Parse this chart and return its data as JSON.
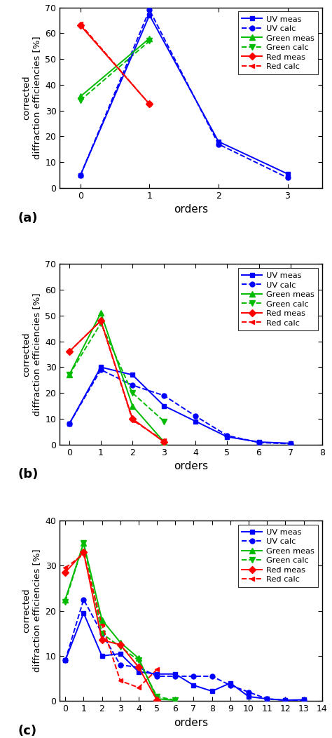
{
  "panel_a": {
    "uv_meas": {
      "x": [
        0,
        1,
        2,
        3
      ],
      "y": [
        5,
        67,
        18,
        5.5
      ]
    },
    "uv_calc": {
      "x": [
        0,
        1,
        2,
        3
      ],
      "y": [
        5,
        69,
        17,
        4
      ]
    },
    "green_meas": {
      "x": [
        0,
        1
      ],
      "y": [
        35.5,
        58
      ]
    },
    "green_calc": {
      "x": [
        0,
        1
      ],
      "y": [
        34,
        57
      ]
    },
    "red_meas": {
      "x": [
        0,
        1
      ],
      "y": [
        63,
        32.5
      ]
    },
    "red_calc": {
      "x": [
        0,
        1
      ],
      "y": [
        63.5,
        32.5
      ]
    },
    "ylim": [
      0,
      70
    ],
    "yticks": [
      0,
      10,
      20,
      30,
      40,
      50,
      60,
      70
    ],
    "xlim": [
      -0.3,
      3.5
    ],
    "xticks": [
      0,
      1,
      2,
      3
    ],
    "label": "(a)"
  },
  "panel_b": {
    "uv_meas": {
      "x": [
        0,
        1,
        2,
        3,
        4,
        5,
        6,
        7
      ],
      "y": [
        8,
        30,
        27,
        15,
        9,
        3,
        1,
        0.5
      ]
    },
    "uv_calc": {
      "x": [
        0,
        1,
        2,
        3,
        4,
        5,
        6,
        7
      ],
      "y": [
        8,
        29,
        23,
        19,
        11,
        3.5,
        0.8,
        0.3
      ]
    },
    "green_meas": {
      "x": [
        0,
        1,
        2,
        3
      ],
      "y": [
        27,
        51,
        15,
        1
      ]
    },
    "green_calc": {
      "x": [
        0,
        1,
        2,
        3
      ],
      "y": [
        27,
        47,
        20,
        9
      ]
    },
    "red_meas": {
      "x": [
        0,
        1,
        2,
        3
      ],
      "y": [
        36,
        48,
        10,
        1
      ]
    },
    "red_calc": {
      "x": [
        0,
        1,
        2,
        3
      ],
      "y": [
        36,
        48,
        9.5,
        1.5
      ]
    },
    "ylim": [
      0,
      70
    ],
    "yticks": [
      0,
      10,
      20,
      30,
      40,
      50,
      60,
      70
    ],
    "xlim": [
      -0.3,
      8
    ],
    "xticks": [
      0,
      1,
      2,
      3,
      4,
      5,
      6,
      7,
      8
    ],
    "label": "(b)"
  },
  "panel_c": {
    "uv_meas": {
      "x": [
        0,
        1,
        2,
        3,
        4,
        5,
        6,
        7,
        8,
        9,
        10,
        11,
        12,
        13
      ],
      "y": [
        9,
        19.5,
        10,
        10.5,
        6.5,
        6,
        6,
        3.5,
        2.2,
        4,
        1,
        0.5,
        0.2,
        0.3
      ]
    },
    "uv_calc": {
      "x": [
        0,
        1,
        2,
        3,
        4,
        5,
        6,
        7,
        8,
        9,
        10,
        11,
        12,
        13
      ],
      "y": [
        9,
        22.5,
        15,
        8,
        7.5,
        5.5,
        5.5,
        5.5,
        5.5,
        3.5,
        2,
        0.5,
        0.2,
        0.2
      ]
    },
    "green_meas": {
      "x": [
        0,
        1,
        2,
        3,
        4,
        5,
        6
      ],
      "y": [
        22.5,
        35,
        18,
        13,
        9.5,
        0.5,
        0.2
      ]
    },
    "green_calc": {
      "x": [
        0,
        1,
        2,
        3,
        4,
        5,
        6
      ],
      "y": [
        22,
        35,
        15,
        12,
        9,
        1,
        0.2
      ]
    },
    "red_meas": {
      "x": [
        0,
        1,
        2,
        3,
        4,
        5
      ],
      "y": [
        28.5,
        33,
        13.5,
        12.5,
        7.5,
        0.2
      ]
    },
    "red_calc": {
      "x": [
        0,
        1,
        2,
        3,
        4,
        5
      ],
      "y": [
        29.5,
        32.5,
        17,
        4.5,
        3,
        7
      ]
    },
    "ylim": [
      0,
      40
    ],
    "yticks": [
      0,
      10,
      20,
      30,
      40
    ],
    "xlim": [
      -0.3,
      14
    ],
    "xticks": [
      0,
      1,
      2,
      3,
      4,
      5,
      6,
      7,
      8,
      9,
      10,
      11,
      12,
      13,
      14
    ],
    "label": "(c)"
  },
  "colors": {
    "blue": "#0000FF",
    "green": "#00BB00",
    "red": "#FF0000"
  },
  "ylabel": "corrected\ndiffraction efficiencies [%]",
  "xlabel": "orders",
  "legend_entries": [
    "UV meas",
    "UV calc",
    "Green meas",
    "Green calc",
    "Red meas",
    "Red calc"
  ]
}
